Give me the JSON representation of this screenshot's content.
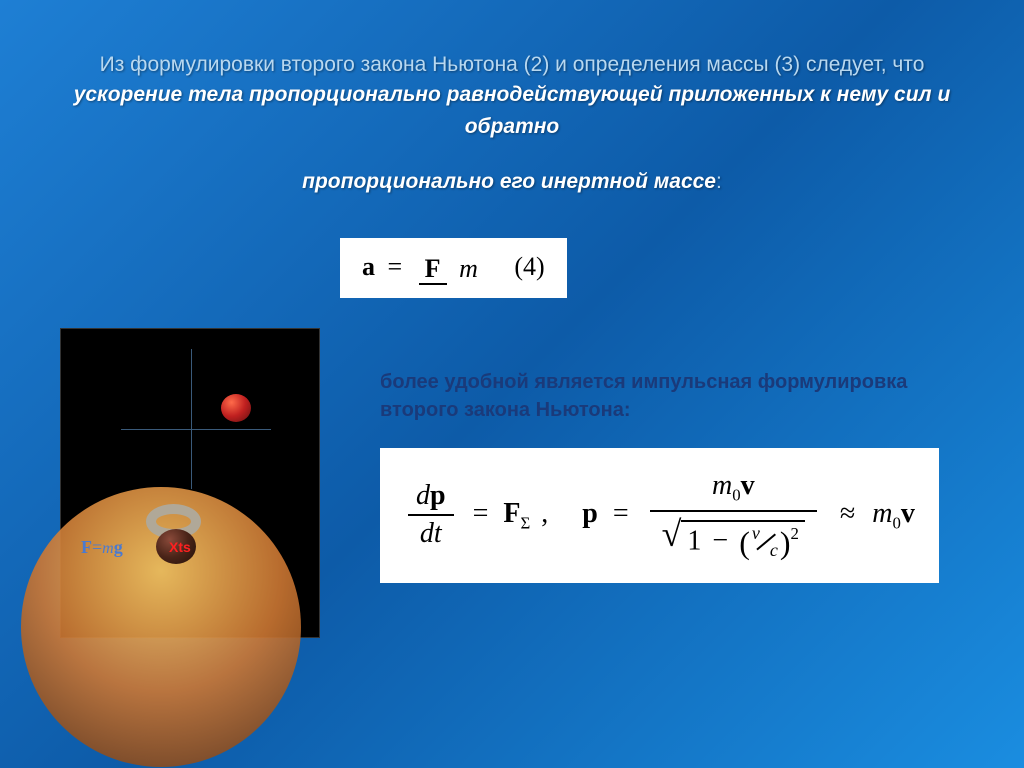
{
  "title": {
    "line1_plain": "Из формулировки второго закона Ньютона (2) и определения массы (3) следует, что ",
    "line1_emph": "ускорение тела пропорционально равнодействующей приложенных к нему сил и обратно",
    "line2_emph": "пропорционально его инертной массе",
    "colon": ":",
    "plain_color": "#b8d8f0",
    "emph_color": "#ffffff",
    "fontsize": 21
  },
  "formula1": {
    "lhs_var": "a",
    "eq": "=",
    "num": "F",
    "den": "m",
    "eq_num": "(4)",
    "background": "#ffffff",
    "text_color": "#000000",
    "fontsize": 26
  },
  "subtitle": {
    "text": "более удобной является импульсная формулировка второго закона Ньютона:",
    "color": "#1a3a7a",
    "fontsize": 20
  },
  "formula2": {
    "dp": "d",
    "p_var": "p",
    "dt": "dt",
    "eq": "=",
    "F": "F",
    "F_sub": "Σ",
    "comma": ",",
    "p2": "p",
    "m0": "m",
    "zero": "0",
    "v": "v",
    "one": "1",
    "minus": "−",
    "v_small": "v",
    "c_small": "c",
    "pow2": "2",
    "approx": "≈",
    "background": "#ffffff",
    "text_color": "#000000",
    "fontsize": 28
  },
  "diagram": {
    "background": "#000000",
    "axis_color": "#3a5a7a",
    "ball_red_color": "#c02020",
    "ring_color": "#b0a898",
    "ball_dark_color": "#4a2418",
    "moon_color": "#cc7733",
    "F_label_prefix": "F",
    "F_label_eq": "=",
    "F_label_m": "m",
    "F_label_g": "g",
    "F_label_color": "#4a7ad0",
    "x_marker": "Xts",
    "x_color": "#ff2020"
  },
  "slide_bg_gradient": [
    "#1e7fd4",
    "#0d5ba8",
    "#1a8de0"
  ]
}
